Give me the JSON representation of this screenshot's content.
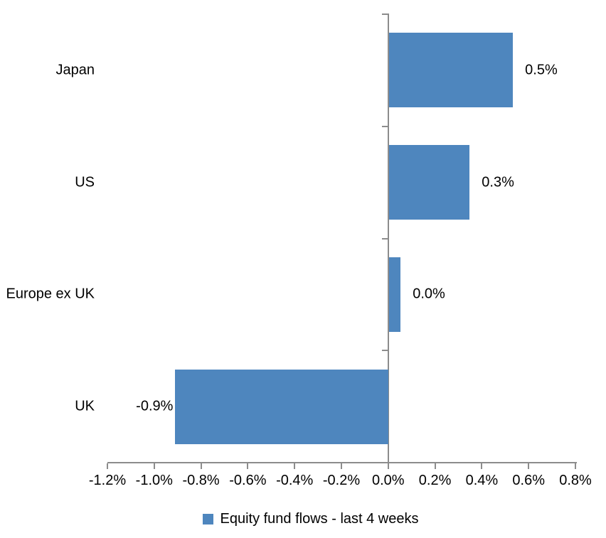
{
  "chart_data": {
    "type": "bar",
    "orientation": "horizontal",
    "title": "",
    "categories": [
      "Japan",
      "US",
      "Europe ex UK",
      "UK"
    ],
    "values": [
      0.5,
      0.3,
      0.0,
      -0.9
    ],
    "data_labels": [
      "0.5%",
      "0.3%",
      "0.0%",
      "-0.9%"
    ],
    "bar_extents_pct": [
      0.53,
      0.345,
      0.05,
      -0.91
    ],
    "xlabel": "",
    "ylabel": "",
    "xlim": [
      -1.2,
      0.8
    ],
    "x_ticks": [
      -1.2,
      -1.0,
      -0.8,
      -0.6,
      -0.4,
      -0.2,
      0.0,
      0.2,
      0.4,
      0.6,
      0.8
    ],
    "x_tick_labels": [
      "-1.2%",
      "-1.0%",
      "-0.8%",
      "-0.6%",
      "-0.4%",
      "-0.2%",
      "0.0%",
      "0.2%",
      "0.4%",
      "0.6%",
      "0.8%"
    ],
    "grid": false,
    "legend_position": "bottom",
    "legend": [
      {
        "label": "Equity fund flows - last 4 weeks",
        "color": "#4E86BE"
      }
    ],
    "colors": {
      "bar": "#4E86BE",
      "axis": "#8C8C8C",
      "text": "#000000",
      "background": "#FFFFFF"
    }
  }
}
